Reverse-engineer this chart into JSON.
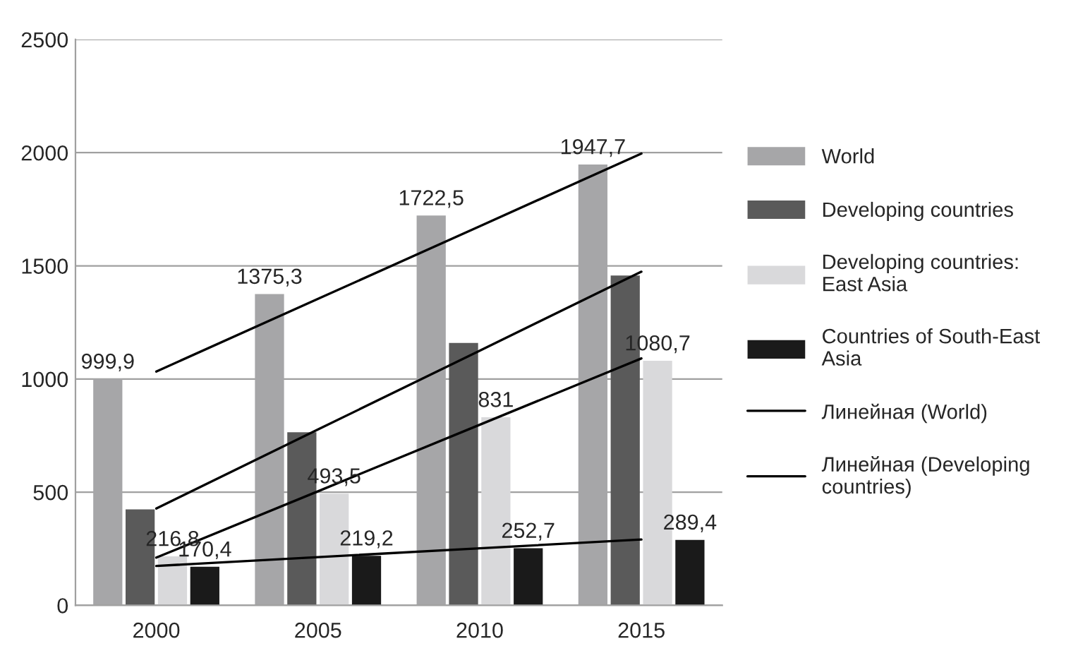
{
  "chart_data": {
    "type": "bar",
    "categories": [
      "2000",
      "2005",
      "2010",
      "2015"
    ],
    "ylim": [
      0,
      2500
    ],
    "yticks": [
      0,
      500,
      1000,
      1500,
      2000,
      2500
    ],
    "grid": "y",
    "legend": "right",
    "series": [
      {
        "name": "World",
        "color": "#a6a6a8",
        "values": [
          999.9,
          1375.3,
          1722.5,
          1947.7
        ],
        "value_labels": [
          "999,9",
          "1375,3",
          "1722,5",
          "1947,7"
        ]
      },
      {
        "name": "Developing countries",
        "color": "#5a5a5a",
        "values": [
          424,
          765,
          1159,
          1457
        ]
      },
      {
        "name": "Developing countries: East Asia",
        "color": "#d9d9db",
        "values": [
          216.8,
          493.5,
          831,
          1080.7
        ],
        "value_labels": [
          "216,8",
          "493,5",
          "831",
          "1080,7"
        ]
      },
      {
        "name": "Countries of South-East Asia",
        "color": "#1a1a1a",
        "values": [
          170.4,
          219.2,
          252.7,
          289.4
        ],
        "value_labels": [
          "170,4",
          "219,2",
          "252,7",
          "289,4"
        ]
      },
      {
        "name": "Линейная (World)",
        "type": "line",
        "color": "#000000",
        "values": [
          1033,
          1354,
          1675,
          1996
        ]
      },
      {
        "name": "Линейная (Developing countries)",
        "type": "line",
        "color": "#000000",
        "values": [
          428,
          777,
          1125,
          1474
        ]
      },
      {
        "type": "line",
        "color": "#000000",
        "values": [
          211,
          504,
          798,
          1091
        ]
      },
      {
        "type": "line",
        "color": "#000000",
        "values": [
          174,
          213,
          252,
          291
        ]
      }
    ]
  }
}
